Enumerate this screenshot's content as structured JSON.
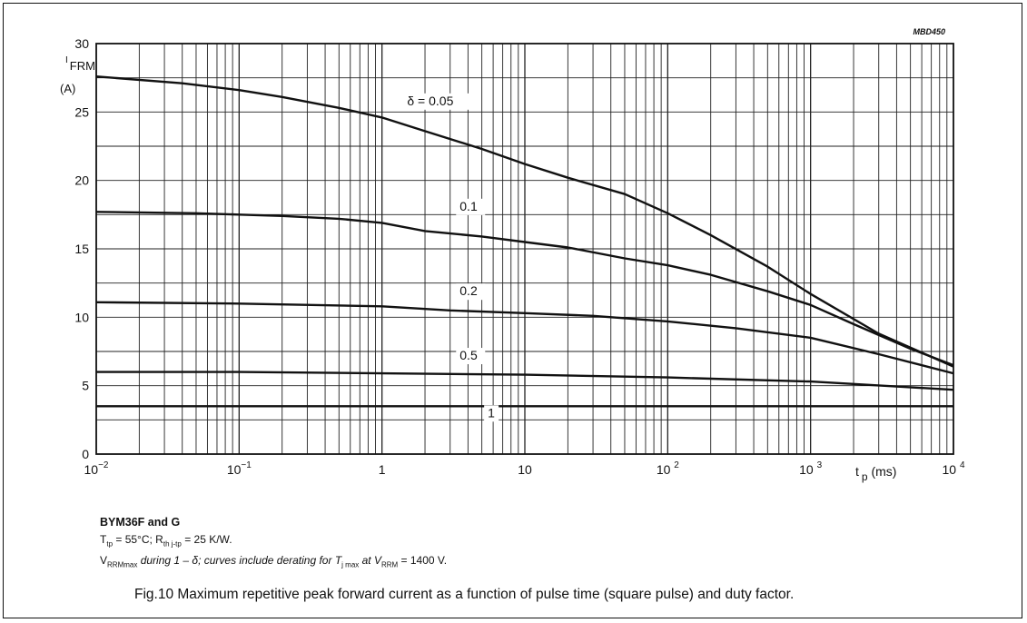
{
  "figure_code": "MBD450",
  "notes": {
    "title": "BYM36F and G",
    "line1": {
      "a": "T",
      "a_sub": "tp",
      "b": " = 55°C; R",
      "b_sub": "th j-tp",
      "c": " = 25 K/W."
    },
    "line2": {
      "a": "V",
      "a_sub": "RRMmax",
      "b": " during 1 – δ; curves include derating for T",
      "b_sub": "j max",
      "c": " at V",
      "c_sub": "RRM",
      "d": " = 1400 V."
    }
  },
  "caption": "Fig.10  Maximum repetitive peak forward current as a function of pulse time (square pulse) and duty factor.",
  "chart_data": {
    "type": "line",
    "x_scale": "log",
    "xlim": [
      0.01,
      10000
    ],
    "ylim": [
      0,
      30
    ],
    "y_ticks": [
      0,
      5,
      10,
      15,
      20,
      25,
      30
    ],
    "x_ticks": [
      {
        "value": 0.01,
        "base": "10",
        "exp": "−2"
      },
      {
        "value": 0.1,
        "base": "10",
        "exp": "−1"
      },
      {
        "value": 1,
        "base": "1",
        "exp": ""
      },
      {
        "value": 10,
        "base": "10",
        "exp": ""
      },
      {
        "value": 100,
        "base": "10 ",
        "exp": "2"
      },
      {
        "value": 1000,
        "base": "10 ",
        "exp": "3"
      },
      {
        "value": 10000,
        "base": "10 ",
        "exp": "4"
      }
    ],
    "ylabel": {
      "main": "I",
      "sub": "FRM",
      "unit": "(A)"
    },
    "xlabel": {
      "main": "t",
      "sub": "p",
      "unit": " (ms)"
    },
    "grid": true,
    "series": [
      {
        "name": "δ = 0.05",
        "label_x": 1.5,
        "label_y": 25.5,
        "x": [
          0.01,
          0.04,
          0.1,
          0.2,
          0.5,
          1,
          2,
          5,
          10,
          20,
          50,
          100,
          200,
          500,
          1000,
          3000,
          10000
        ],
        "y": [
          27.6,
          27.1,
          26.6,
          26.1,
          25.3,
          24.6,
          23.6,
          22.3,
          21.2,
          20.2,
          19.0,
          17.6,
          16.0,
          13.7,
          11.7,
          8.8,
          6.4
        ]
      },
      {
        "name": "0.1",
        "label_x": 3.5,
        "label_y": 17.8,
        "x": [
          0.01,
          0.05,
          0.1,
          0.2,
          0.5,
          1,
          2,
          5,
          10,
          20,
          50,
          100,
          200,
          500,
          1000,
          2000,
          5000,
          10000
        ],
        "y": [
          17.7,
          17.6,
          17.5,
          17.4,
          17.2,
          16.9,
          16.3,
          15.9,
          15.5,
          15.1,
          14.3,
          13.8,
          13.1,
          11.9,
          10.9,
          9.5,
          7.7,
          6.5
        ]
      },
      {
        "name": "0.2",
        "label_x": 3.5,
        "label_y": 11.6,
        "x": [
          0.01,
          0.1,
          1,
          3,
          10,
          30,
          100,
          300,
          1000,
          3000,
          10000
        ],
        "y": [
          11.1,
          11.0,
          10.8,
          10.5,
          10.3,
          10.1,
          9.7,
          9.2,
          8.5,
          7.3,
          5.9
        ]
      },
      {
        "name": "0.5",
        "label_x": 3.5,
        "label_y": 6.9,
        "x": [
          0.01,
          0.1,
          1,
          10,
          100,
          1000,
          10000
        ],
        "y": [
          6.0,
          6.0,
          5.9,
          5.8,
          5.6,
          5.3,
          4.7
        ]
      },
      {
        "name": "1",
        "label_x": 5.5,
        "label_y": 2.7,
        "x": [
          0.01,
          0.1,
          1,
          10,
          100,
          1000,
          10000
        ],
        "y": [
          3.5,
          3.5,
          3.5,
          3.5,
          3.5,
          3.5,
          3.5
        ]
      }
    ]
  }
}
